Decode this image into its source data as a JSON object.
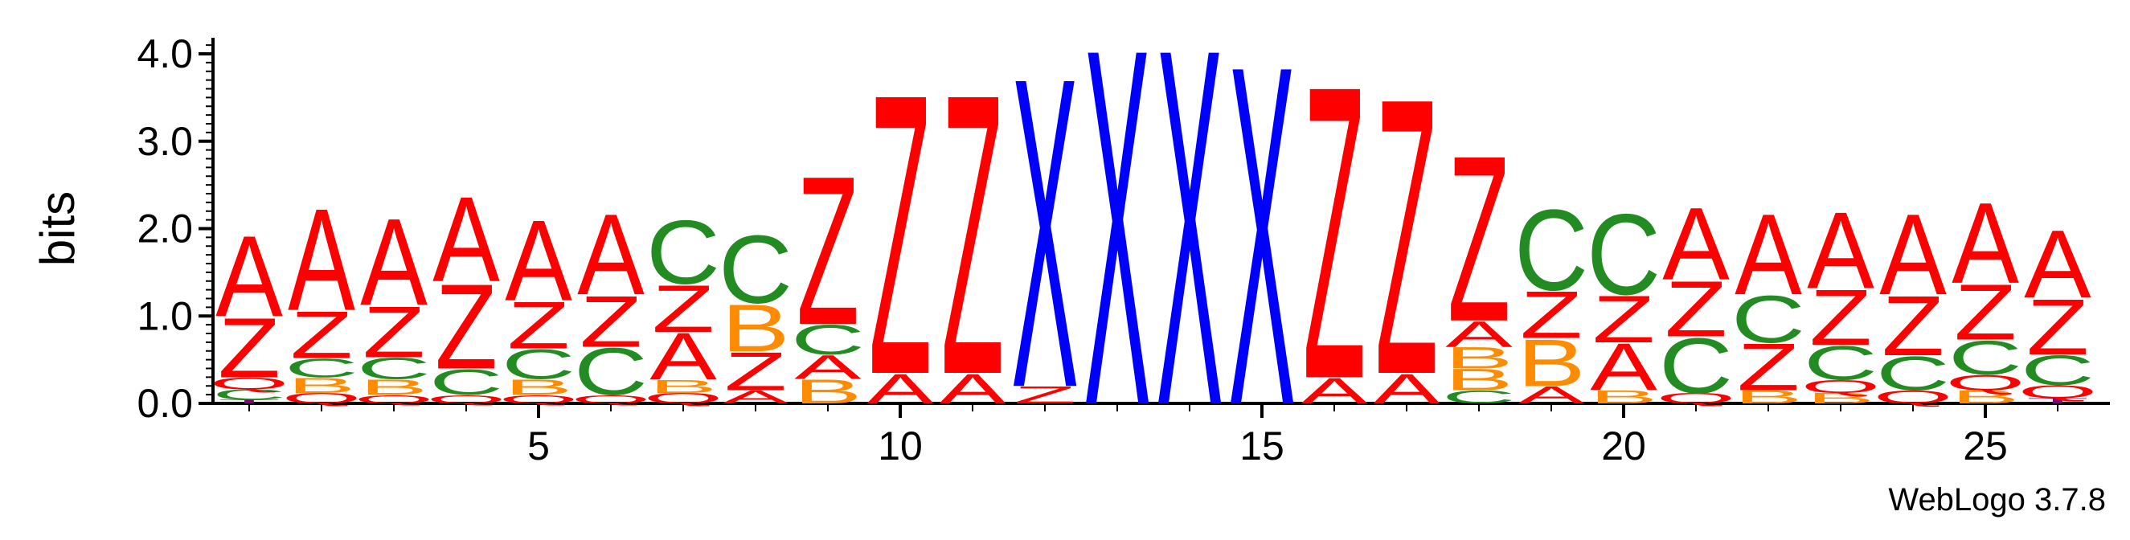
{
  "chart_data": {
    "type": "sequence-logo",
    "ylabel": "bits",
    "ylim": [
      0,
      4.0
    ],
    "y_ticks": [
      "0.0",
      "1.0",
      "2.0",
      "3.0",
      "4.0"
    ],
    "x_ticks": [
      "5",
      "10",
      "15",
      "20",
      "25"
    ],
    "positions": 26,
    "colors": {
      "A": "#ff0000",
      "Z": "#ff0000",
      "X": "#0000ff",
      "C": "#228b22",
      "B": "#ff8c00",
      "Q": "#ff0000",
      "T": "#800080"
    },
    "columns": [
      {
        "pos": 1,
        "stack": [
          [
            "T",
            0.04
          ],
          [
            "C",
            0.12
          ],
          [
            "Q",
            0.14
          ],
          [
            "Z",
            0.7
          ],
          [
            "A",
            0.95
          ]
        ]
      },
      {
        "pos": 2,
        "stack": [
          [
            "Q",
            0.12
          ],
          [
            "B",
            0.18
          ],
          [
            "C",
            0.22
          ],
          [
            "Z",
            0.55
          ],
          [
            "A",
            1.2
          ]
        ]
      },
      {
        "pos": 3,
        "stack": [
          [
            "Q",
            0.1
          ],
          [
            "B",
            0.18
          ],
          [
            "C",
            0.25
          ],
          [
            "Z",
            0.6
          ],
          [
            "A",
            1.02
          ]
        ]
      },
      {
        "pos": 4,
        "stack": [
          [
            "Q",
            0.1
          ],
          [
            "C",
            0.3
          ],
          [
            "Z",
            1.0
          ],
          [
            "A",
            1.0
          ]
        ]
      },
      {
        "pos": 5,
        "stack": [
          [
            "Q",
            0.1
          ],
          [
            "B",
            0.18
          ],
          [
            "C",
            0.35
          ],
          [
            "Z",
            0.55
          ],
          [
            "A",
            0.95
          ]
        ]
      },
      {
        "pos": 6,
        "stack": [
          [
            "Q",
            0.1
          ],
          [
            "C",
            0.55
          ],
          [
            "Z",
            0.6
          ],
          [
            "A",
            0.95
          ]
        ]
      },
      {
        "pos": 7,
        "stack": [
          [
            "Q",
            0.12
          ],
          [
            "B",
            0.15
          ],
          [
            "A",
            0.55
          ],
          [
            "Z",
            0.55
          ],
          [
            "C",
            0.75
          ]
        ]
      },
      {
        "pos": 8,
        "stack": [
          [
            "A",
            0.15
          ],
          [
            "Z",
            0.45
          ],
          [
            "B",
            0.55
          ],
          [
            "C",
            0.8
          ]
        ]
      },
      {
        "pos": 9,
        "stack": [
          [
            "B",
            0.28
          ],
          [
            "A",
            0.28
          ],
          [
            "C",
            0.35
          ],
          [
            "Z",
            1.75
          ]
        ]
      },
      {
        "pos": 10,
        "stack": [
          [
            "A",
            0.35
          ],
          [
            "Z",
            3.3
          ]
        ]
      },
      {
        "pos": 11,
        "stack": [
          [
            "A",
            0.35
          ],
          [
            "Z",
            3.3
          ]
        ]
      },
      {
        "pos": 12,
        "stack": [
          [
            "Z",
            0.2
          ],
          [
            "X",
            3.65
          ]
        ]
      },
      {
        "pos": 13,
        "stack": [
          [
            "X",
            4.2
          ]
        ]
      },
      {
        "pos": 14,
        "stack": [
          [
            "X",
            4.2
          ]
        ]
      },
      {
        "pos": 15,
        "stack": [
          [
            "X",
            4.0
          ]
        ]
      },
      {
        "pos": 16,
        "stack": [
          [
            "A",
            0.3
          ],
          [
            "Z",
            3.45
          ]
        ]
      },
      {
        "pos": 17,
        "stack": [
          [
            "A",
            0.35
          ],
          [
            "Z",
            3.25
          ]
        ]
      },
      {
        "pos": 18,
        "stack": [
          [
            "C",
            0.15
          ],
          [
            "B",
            0.25
          ],
          [
            "B",
            0.25
          ],
          [
            "A",
            0.3
          ],
          [
            "Z",
            1.95
          ]
        ]
      },
      {
        "pos": 19,
        "stack": [
          [
            "A",
            0.2
          ],
          [
            "B",
            0.55
          ],
          [
            "Z",
            0.55
          ],
          [
            "C",
            0.95
          ]
        ]
      },
      {
        "pos": 20,
        "stack": [
          [
            "B",
            0.15
          ],
          [
            "A",
            0.55
          ],
          [
            "Z",
            0.55
          ],
          [
            "C",
            0.95
          ]
        ]
      },
      {
        "pos": 21,
        "stack": [
          [
            "Q",
            0.12
          ],
          [
            "C",
            0.65
          ],
          [
            "Z",
            0.65
          ],
          [
            "A",
            0.85
          ]
        ]
      },
      {
        "pos": 22,
        "stack": [
          [
            "B",
            0.15
          ],
          [
            "Z",
            0.55
          ],
          [
            "C",
            0.55
          ],
          [
            "A",
            0.95
          ]
        ]
      },
      {
        "pos": 23,
        "stack": [
          [
            "B",
            0.12
          ],
          [
            "Q",
            0.15
          ],
          [
            "C",
            0.4
          ],
          [
            "Z",
            0.65
          ],
          [
            "A",
            0.9
          ]
        ]
      },
      {
        "pos": 24,
        "stack": [
          [
            "Q",
            0.15
          ],
          [
            "C",
            0.4
          ],
          [
            "Z",
            0.7
          ],
          [
            "A",
            0.95
          ]
        ]
      },
      {
        "pos": 25,
        "stack": [
          [
            "B",
            0.15
          ],
          [
            "Q",
            0.18
          ],
          [
            "C",
            0.4
          ],
          [
            "Z",
            0.65
          ],
          [
            "A",
            0.95
          ]
        ]
      },
      {
        "pos": 26,
        "stack": [
          [
            "T",
            0.06
          ],
          [
            "Q",
            0.15
          ],
          [
            "C",
            0.35
          ],
          [
            "Z",
            0.65
          ],
          [
            "A",
            0.8
          ]
        ]
      }
    ]
  },
  "credit": "WebLogo 3.7.8"
}
